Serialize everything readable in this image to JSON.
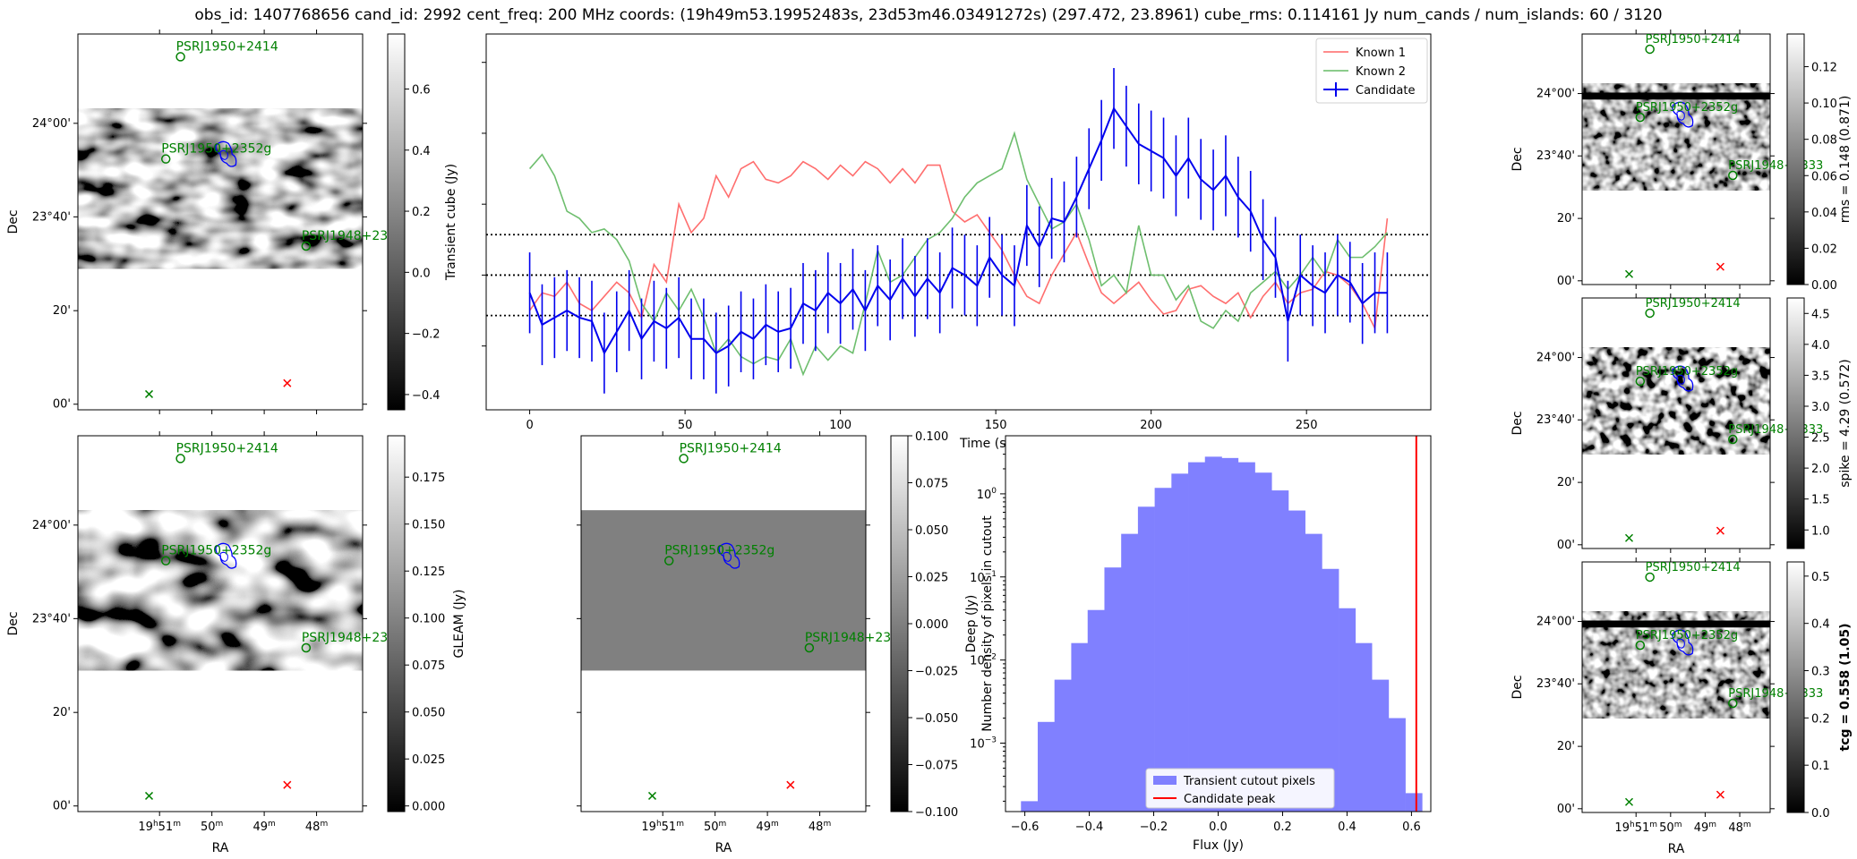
{
  "header": {
    "title": "obs_id: 1407768656 cand_id: 2992 cent_freq: 200 MHz coords: (19h49m53.19952483s, 23d53m46.03491272s) (297.472, 23.8961) cube_rms: 0.114161 Jy num_cands / num_islands: 60 / 3120"
  },
  "sky": {
    "dec_labels": [
      "24°00'",
      "23°40'",
      "20'",
      "00'"
    ],
    "ra_labels": [
      "19h51m",
      "50m",
      "49m",
      "48m"
    ],
    "ra_label_parts": [
      [
        "19",
        "h",
        "51",
        "m"
      ],
      [
        "50",
        "m"
      ],
      [
        "49",
        "m"
      ],
      [
        "48",
        "m"
      ]
    ],
    "xlabel": "RA",
    "ylabel": "Dec",
    "sources": [
      {
        "label": "PSRJ1950+2414",
        "ra": 297.65,
        "dec": 24.237
      },
      {
        "label": "PSRJ1950+2352g",
        "ra": 297.72,
        "dec": 23.873
      },
      {
        "label": "PSRJ1948+2333",
        "ra": 297.05,
        "dec": 23.563
      }
    ],
    "right_source_label": "PSRJ1948+2333",
    "right_source_label_small": "PSRJ1948+2333",
    "markers": [
      {
        "kind": "cross",
        "color": "#008000",
        "ra": 297.8,
        "dec": 23.036
      },
      {
        "kind": "cross",
        "color": "#ff0000",
        "ra": 297.14,
        "dec": 23.075
      }
    ],
    "candidate": {
      "ra": 297.472,
      "dec": 23.8961
    },
    "colors": {
      "source": "#008000",
      "contour": "#0000ff"
    }
  },
  "panels": {
    "transient": {
      "colorbar_label": "Transient cube (Jy)",
      "ticks": [
        0.6,
        0.4,
        0.2,
        0.0,
        -0.2,
        -0.4
      ],
      "tick_labels": [
        "0.6",
        "0.4",
        "0.2",
        "0.0",
        "−0.2",
        "−0.4"
      ],
      "vmin": -0.45,
      "vmax": 0.78
    },
    "gleam": {
      "colorbar_label": "GLEAM (Jy)",
      "ticks": [
        0.175,
        0.15,
        0.125,
        0.1,
        0.075,
        0.05,
        0.025,
        0.0
      ],
      "tick_labels": [
        "0.175",
        "0.150",
        "0.125",
        "0.100",
        "0.075",
        "0.050",
        "0.025",
        "0.000"
      ],
      "vmin": -0.003,
      "vmax": 0.197
    },
    "deep": {
      "colorbar_label": "Deep (Jy)",
      "ticks": [
        0.1,
        0.075,
        0.05,
        0.025,
        0.0,
        -0.025,
        -0.05,
        -0.075,
        -0.1
      ],
      "tick_labels": [
        "0.100",
        "0.075",
        "0.050",
        "0.025",
        "0.000",
        "−0.025",
        "−0.050",
        "−0.075",
        "−0.100"
      ],
      "vmin": -0.1,
      "vmax": 0.1
    },
    "rms": {
      "colorbar_label": "rms = 0.148 (0.871)",
      "ticks": [
        0.12,
        0.1,
        0.08,
        0.06,
        0.04,
        0.02,
        0.0
      ],
      "tick_labels": [
        "0.12",
        "0.10",
        "0.08",
        "0.06",
        "0.04",
        "0.02",
        "0.00"
      ],
      "vmin": 0.0,
      "vmax": 0.138
    },
    "spike": {
      "colorbar_label": "spike = 4.29 (0.572)",
      "ticks": [
        4.5,
        4.0,
        3.5,
        3.0,
        2.5,
        2.0,
        1.5,
        1.0
      ],
      "tick_labels": [
        "4.5",
        "4.0",
        "3.5",
        "3.0",
        "2.5",
        "2.0",
        "1.5",
        "1.0"
      ],
      "vmin": 0.7,
      "vmax": 4.75
    },
    "tcg": {
      "colorbar_label": "tcg = 0.558 (1.05)",
      "ticks": [
        0.5,
        0.4,
        0.3,
        0.2,
        0.1,
        0.0
      ],
      "tick_labels": [
        "0.5",
        "0.4",
        "0.3",
        "0.2",
        "0.1",
        "0.0"
      ],
      "vmin": 0.0,
      "vmax": 0.53
    }
  },
  "chart_data": [
    {
      "type": "line",
      "xlabel": "Time (s)",
      "ylabel": "",
      "xlim": [
        -14,
        290
      ],
      "ylim": [
        -0.38,
        0.68
      ],
      "xticks": [
        0,
        50,
        100,
        150,
        200,
        250
      ],
      "hlines": [
        0.114,
        0.0,
        -0.114
      ],
      "legend": "top-right",
      "x": [
        0,
        4,
        8,
        12,
        16,
        20,
        24,
        28,
        32,
        36,
        40,
        44,
        48,
        52,
        56,
        60,
        64,
        68,
        72,
        76,
        80,
        84,
        88,
        92,
        96,
        100,
        104,
        108,
        112,
        116,
        120,
        124,
        128,
        132,
        136,
        140,
        144,
        148,
        152,
        156,
        160,
        164,
        168,
        172,
        176,
        180,
        184,
        188,
        192,
        196,
        200,
        204,
        208,
        212,
        216,
        220,
        224,
        228,
        232,
        236,
        240,
        244,
        248,
        252,
        256,
        260,
        264,
        268,
        272,
        276
      ],
      "series": [
        {
          "name": "Known 1",
          "color": "#ff6666",
          "values": [
            -0.1,
            -0.05,
            -0.06,
            -0.02,
            -0.08,
            -0.1,
            -0.06,
            -0.02,
            -0.05,
            -0.12,
            0.03,
            -0.02,
            0.2,
            0.12,
            0.16,
            0.28,
            0.22,
            0.3,
            0.32,
            0.27,
            0.26,
            0.28,
            0.32,
            0.3,
            0.27,
            0.31,
            0.28,
            0.32,
            0.3,
            0.26,
            0.3,
            0.26,
            0.31,
            0.31,
            0.18,
            0.15,
            0.17,
            0.12,
            0.07,
            0.0,
            -0.06,
            -0.08,
            0.0,
            0.06,
            0.12,
            0.03,
            -0.05,
            -0.08,
            -0.05,
            -0.02,
            -0.07,
            -0.11,
            -0.1,
            -0.04,
            -0.03,
            -0.06,
            -0.08,
            -0.05,
            -0.12,
            -0.06,
            -0.02,
            -0.08,
            -0.05,
            -0.04,
            0.01,
            0.0,
            -0.03,
            -0.08,
            -0.15,
            0.16
          ]
        },
        {
          "name": "Known 2",
          "color": "#66bb66",
          "values": [
            0.3,
            0.34,
            0.28,
            0.18,
            0.16,
            0.12,
            0.13,
            0.1,
            0.04,
            -0.08,
            -0.13,
            -0.05,
            -0.1,
            -0.04,
            -0.12,
            -0.22,
            -0.18,
            -0.23,
            -0.25,
            -0.23,
            -0.24,
            -0.18,
            -0.28,
            -0.2,
            -0.24,
            -0.2,
            -0.22,
            -0.08,
            0.07,
            -0.02,
            0.0,
            0.05,
            0.1,
            0.12,
            0.16,
            0.22,
            0.26,
            0.28,
            0.3,
            0.4,
            0.27,
            0.2,
            0.13,
            0.15,
            0.2,
            0.1,
            -0.03,
            0.0,
            -0.05,
            0.14,
            0.0,
            0.0,
            -0.07,
            -0.03,
            -0.13,
            -0.15,
            -0.1,
            -0.13,
            -0.05,
            -0.02,
            0.01,
            -0.04,
            0.0,
            0.05,
            0.0,
            0.1,
            0.05,
            0.05,
            0.08,
            0.12
          ]
        },
        {
          "name": "Candidate",
          "color": "#0000ee",
          "values": [
            -0.05,
            -0.14,
            -0.12,
            -0.1,
            -0.12,
            -0.13,
            -0.22,
            -0.16,
            -0.1,
            -0.18,
            -0.13,
            -0.15,
            -0.12,
            -0.18,
            -0.18,
            -0.22,
            -0.2,
            -0.16,
            -0.18,
            -0.14,
            -0.16,
            -0.15,
            -0.08,
            -0.1,
            -0.05,
            -0.08,
            -0.04,
            -0.1,
            -0.03,
            -0.07,
            -0.01,
            -0.06,
            -0.01,
            -0.05,
            0.02,
            0.0,
            -0.03,
            0.05,
            0.0,
            -0.03,
            0.14,
            0.08,
            0.16,
            0.15,
            0.22,
            0.3,
            0.38,
            0.47,
            0.42,
            0.37,
            0.35,
            0.33,
            0.28,
            0.33,
            0.27,
            0.24,
            0.28,
            0.22,
            0.18,
            0.1,
            0.05,
            -0.13,
            0.0,
            -0.03,
            -0.05,
            0.0,
            -0.02,
            -0.08,
            -0.05,
            -0.05
          ],
          "yerr": 0.114
        }
      ]
    },
    {
      "type": "bar",
      "xlabel": "Flux (Jy)",
      "ylabel": "Number density of pixels in cutout",
      "yscale": "log",
      "xlim": [
        -0.66,
        0.66
      ],
      "ylim": [
        0.00015,
        5.0
      ],
      "xticks": [
        -0.6,
        -0.4,
        -0.2,
        0.0,
        0.2,
        0.4,
        0.6
      ],
      "xtick_labels": [
        "−0.6",
        "−0.4",
        "−0.2",
        "0.0",
        "0.2",
        "0.4",
        "0.6"
      ],
      "yticks": [
        0.001,
        0.01,
        0.1,
        1.0
      ],
      "ytick_bases": [
        "10",
        "10",
        "10",
        "10"
      ],
      "ytick_exponents": [
        "−3",
        "−2",
        "−1",
        "0"
      ],
      "bin_width": 0.0518,
      "bins_left": [
        -0.612,
        -0.56,
        -0.508,
        -0.456,
        -0.405,
        -0.353,
        -0.301,
        -0.249,
        -0.197,
        -0.145,
        -0.093,
        -0.041,
        0.01,
        0.062,
        0.114,
        0.166,
        0.218,
        0.27,
        0.322,
        0.374,
        0.425,
        0.477,
        0.529,
        0.581
      ],
      "values": [
        0.0002,
        0.0018,
        0.0058,
        0.016,
        0.04,
        0.13,
        0.33,
        0.7,
        1.18,
        1.75,
        2.4,
        2.8,
        2.7,
        2.4,
        1.8,
        1.1,
        0.63,
        0.33,
        0.125,
        0.042,
        0.016,
        0.0058,
        0.002,
        0.00025
      ],
      "bar_color": "#8080ff",
      "vline": 0.615,
      "vline_color": "#ff0000",
      "legend_labels": [
        "Transient cutout pixels",
        "Candidate peak"
      ],
      "legend": "bottom-center"
    }
  ]
}
